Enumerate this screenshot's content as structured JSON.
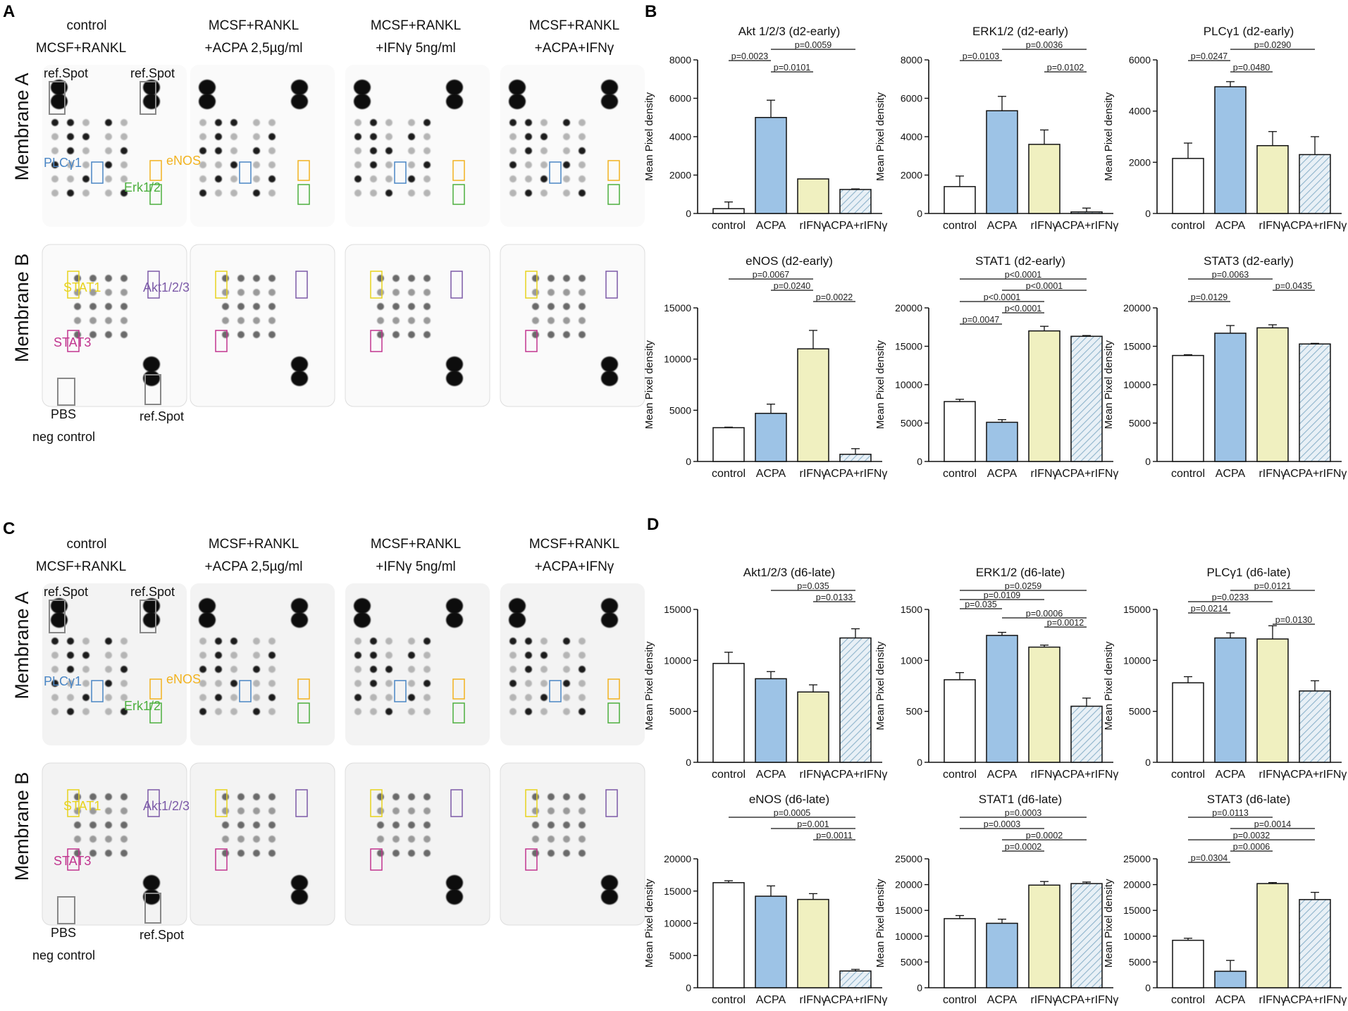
{
  "panel_letters": [
    "A",
    "B",
    "C",
    "D"
  ],
  "blot_panels": [
    {
      "letter": "A",
      "columns": [
        {
          "l1": "control",
          "l2": "MCSF+RANKL"
        },
        {
          "l1": "MCSF+RANKL",
          "l2": "+ACPA 2,5µg/ml"
        },
        {
          "l1": "MCSF+RANKL",
          "l2": "+IFNγ 5ng/ml"
        },
        {
          "l1": "MCSF+RANKL",
          "l2": "+ACPA+IFNγ"
        }
      ],
      "membranes": [
        "Membrane A",
        "Membrane B"
      ],
      "labels": {
        "ref_spot": "ref.Spot",
        "plcg1": "PLCγ1",
        "enos": "eNOS",
        "erk": "Erk1/2",
        "stat1": "STAT1",
        "stat3": "STAT3",
        "akt": "Akt1/2/3",
        "pbs": "PBS",
        "neg_control": "neg control"
      }
    },
    {
      "letter": "C",
      "columns": [
        {
          "l1": "control",
          "l2": "MCSF+RANKL"
        },
        {
          "l1": "MCSF+RANKL",
          "l2": "+ACPA 2,5µg/ml"
        },
        {
          "l1": "MCSF+RANKL",
          "l2": "+IFNγ 5ng/ml"
        },
        {
          "l1": "MCSF+RANKL",
          "l2": "+ACPA+IFNγ"
        }
      ],
      "membranes": [
        "Membrane A",
        "Membrane B"
      ],
      "labels": {
        "ref_spot": "ref.Spot",
        "plcg1": "PLCγ1",
        "enos": "eNOS",
        "erk": "Erk1/2",
        "stat1": "STAT1",
        "stat3": "STAT3",
        "akt": "Akt1/2/3",
        "pbs": "PBS",
        "neg_control": "neg control"
      }
    }
  ],
  "colors": {
    "bar_fills": [
      "#ffffff",
      "#9dc3e6",
      "#f0f0c0",
      "#dde9f2"
    ],
    "hatch": "#8fb4cc",
    "plcg1": "#4a86c5",
    "enos": "#f2b21f",
    "erk": "#4caf3e",
    "stat1": "#e8d31c",
    "stat3": "#c1358f",
    "akt": "#7c5aa8",
    "grey_box": "#888888"
  },
  "chart_data": [
    {
      "type": "bar",
      "title": "Akt 1/2/3 (d2-early)",
      "ylabel": "Mean Pixel density",
      "categories": [
        "control",
        "ACPA",
        "rIFNγ",
        "ACPA+rIFNγ"
      ],
      "values": [
        250,
        5000,
        1800,
        1250
      ],
      "errors": [
        350,
        900,
        0,
        30
      ],
      "ylim": [
        0,
        8000
      ],
      "yticks": [
        0,
        2000,
        4000,
        6000,
        8000
      ],
      "comparisons": [
        {
          "a": 1,
          "b": 3,
          "label": "p=0.0059"
        },
        {
          "a": 0,
          "b": 1,
          "label": "p=0.0023"
        },
        {
          "a": 1,
          "b": 2,
          "label": "p=0.0101"
        }
      ]
    },
    {
      "type": "bar",
      "title": "ERK1/2 (d2-early)",
      "ylabel": "Mean Pixel density",
      "categories": [
        "control",
        "ACPA",
        "rIFNγ",
        "ACPA+rIFNγ"
      ],
      "values": [
        1400,
        5350,
        3600,
        80
      ],
      "errors": [
        550,
        750,
        750,
        200
      ],
      "ylim": [
        0,
        8000
      ],
      "yticks": [
        0,
        2000,
        4000,
        6000,
        8000
      ],
      "comparisons": [
        {
          "a": 1,
          "b": 3,
          "label": "p=0.0036"
        },
        {
          "a": 0,
          "b": 1,
          "label": "p=0.0103"
        },
        {
          "a": 2,
          "b": 3,
          "label": "p=0.0102"
        }
      ]
    },
    {
      "type": "bar",
      "title": "PLCγ1 (d2-early)",
      "ylabel": "Mean Pixel density",
      "categories": [
        "control",
        "ACPA",
        "rIFNγ",
        "ACPA+rIFNγ"
      ],
      "values": [
        2150,
        4950,
        2650,
        2300
      ],
      "errors": [
        600,
        200,
        550,
        700
      ],
      "ylim": [
        0,
        6000
      ],
      "yticks": [
        0,
        2000,
        4000,
        6000
      ],
      "comparisons": [
        {
          "a": 1,
          "b": 3,
          "label": "p=0.0290"
        },
        {
          "a": 0,
          "b": 1,
          "label": "p=0.0247"
        },
        {
          "a": 1,
          "b": 2,
          "label": "p=0.0480"
        }
      ]
    },
    {
      "type": "bar",
      "title": "eNOS (d2-early)",
      "ylabel": "Mean Pixel density",
      "categories": [
        "control",
        "ACPA",
        "rIFNγ",
        "ACPA+rIFNγ"
      ],
      "values": [
        3300,
        4700,
        11000,
        700
      ],
      "errors": [
        50,
        900,
        1800,
        550
      ],
      "ylim": [
        0,
        15000
      ],
      "yticks": [
        0,
        5000,
        10000,
        15000
      ],
      "comparisons": [
        {
          "a": 0,
          "b": 2,
          "label": "p=0.0067"
        },
        {
          "a": 1,
          "b": 2,
          "label": "p=0.0240"
        },
        {
          "a": 2,
          "b": 3,
          "label": "p=0.0022"
        }
      ]
    },
    {
      "type": "bar",
      "title": "STAT1 (d2-early)",
      "ylabel": "Mean Pixel density",
      "categories": [
        "control",
        "ACPA",
        "rIFNγ",
        "ACPA+rIFNγ"
      ],
      "values": [
        7800,
        5100,
        17000,
        16300
      ],
      "errors": [
        300,
        350,
        600,
        100
      ],
      "ylim": [
        0,
        20000
      ],
      "yticks": [
        0,
        5000,
        10000,
        15000,
        20000
      ],
      "comparisons": [
        {
          "a": 0,
          "b": 3,
          "label": "p<0.0001"
        },
        {
          "a": 1,
          "b": 3,
          "label": "p<0.0001"
        },
        {
          "a": 0,
          "b": 2,
          "label": "p<0.0001"
        },
        {
          "a": 1,
          "b": 2,
          "label": "p<0.0001"
        },
        {
          "a": 0,
          "b": 1,
          "label": "p=0.0047"
        }
      ]
    },
    {
      "type": "bar",
      "title": "STAT3 (d2-early)",
      "ylabel": "Mean Pixel density",
      "categories": [
        "control",
        "ACPA",
        "rIFNγ",
        "ACPA+rIFNγ"
      ],
      "values": [
        13800,
        16700,
        17400,
        15300
      ],
      "errors": [
        100,
        1000,
        400,
        80
      ],
      "ylim": [
        0,
        20000
      ],
      "yticks": [
        0,
        5000,
        10000,
        15000,
        20000
      ],
      "comparisons": [
        {
          "a": 0,
          "b": 2,
          "label": "p=0.0063"
        },
        {
          "a": 2,
          "b": 3,
          "label": "p=0.0435"
        },
        {
          "a": 0,
          "b": 1,
          "label": "p=0.0129"
        }
      ]
    },
    {
      "type": "bar",
      "title": "Akt1/2/3 (d6-late)",
      "ylabel": "Mean Pixel density",
      "categories": [
        "control",
        "ACPA",
        "rIFNγ",
        "ACPA+rIFNγ"
      ],
      "values": [
        9700,
        8200,
        6900,
        12200
      ],
      "errors": [
        1100,
        700,
        700,
        900
      ],
      "ylim": [
        0,
        15000
      ],
      "yticks": [
        0,
        5000,
        10000,
        15000
      ],
      "comparisons": [
        {
          "a": 1,
          "b": 3,
          "label": "p=0.035"
        },
        {
          "a": 2,
          "b": 3,
          "label": "p=0.0133"
        }
      ]
    },
    {
      "type": "bar",
      "title": "ERK1/2 (d6-late)",
      "ylabel": "Mean Pixel density",
      "categories": [
        "control",
        "ACPA",
        "rIFNγ",
        "ACPA+rIFNγ"
      ],
      "values": [
        810,
        1245,
        1130,
        550
      ],
      "errors": [
        70,
        30,
        20,
        80
      ],
      "ylim": [
        0,
        1500
      ],
      "yticks": [
        0,
        500,
        1000,
        1500
      ],
      "comparisons": [
        {
          "a": 0,
          "b": 3,
          "label": "p=0.0259"
        },
        {
          "a": 0,
          "b": 2,
          "label": "p=0.0109"
        },
        {
          "a": 0,
          "b": 1,
          "label": "p=0.035"
        },
        {
          "a": 1,
          "b": 3,
          "label": "p=0.0006"
        },
        {
          "a": 2,
          "b": 3,
          "label": "p=0.0012"
        }
      ]
    },
    {
      "type": "bar",
      "title": "PLCγ1 (d6-late)",
      "ylabel": "Mean Pixel density",
      "categories": [
        "control",
        "ACPA",
        "rIFNγ",
        "ACPA+rIFNγ"
      ],
      "values": [
        7800,
        12200,
        12100,
        7000
      ],
      "errors": [
        600,
        500,
        1300,
        1000
      ],
      "ylim": [
        0,
        15000
      ],
      "yticks": [
        0,
        5000,
        10000,
        15000
      ],
      "comparisons": [
        {
          "a": 1,
          "b": 3,
          "label": "p=0.0121"
        },
        {
          "a": 0,
          "b": 2,
          "label": "p=0.0233"
        },
        {
          "a": 0,
          "b": 1,
          "label": "p=0.0214"
        },
        {
          "a": 2,
          "b": 3,
          "label": "p=0.0130"
        }
      ]
    },
    {
      "type": "bar",
      "title": "eNOS (d6-late)",
      "ylabel": "Mean Pixel density",
      "categories": [
        "control",
        "ACPA",
        "rIFNγ",
        "ACPA+rIFNγ"
      ],
      "values": [
        16300,
        14200,
        13700,
        2600
      ],
      "errors": [
        300,
        1600,
        900,
        250
      ],
      "ylim": [
        0,
        20000
      ],
      "yticks": [
        0,
        5000,
        10000,
        15000,
        20000
      ],
      "comparisons": [
        {
          "a": 0,
          "b": 3,
          "label": "p=0.0005"
        },
        {
          "a": 1,
          "b": 3,
          "label": "p=0.001"
        },
        {
          "a": 2,
          "b": 3,
          "label": "p=0.0011"
        }
      ]
    },
    {
      "type": "bar",
      "title": "STAT1 (d6-late)",
      "ylabel": "Mean Pixel density",
      "categories": [
        "control",
        "ACPA",
        "rIFNγ",
        "ACPA+rIFNγ"
      ],
      "values": [
        13400,
        12500,
        19900,
        20200
      ],
      "errors": [
        600,
        800,
        700,
        300
      ],
      "ylim": [
        0,
        25000
      ],
      "yticks": [
        0,
        5000,
        10000,
        15000,
        20000,
        25000
      ],
      "comparisons": [
        {
          "a": 0,
          "b": 3,
          "label": "p=0.0003"
        },
        {
          "a": 0,
          "b": 2,
          "label": "p=0.0003"
        },
        {
          "a": 1,
          "b": 3,
          "label": "p=0.0002"
        },
        {
          "a": 1,
          "b": 2,
          "label": "p=0.0002"
        }
      ]
    },
    {
      "type": "bar",
      "title": "STAT3 (d6-late)",
      "ylabel": "Mean Pixel density",
      "categories": [
        "control",
        "ACPA",
        "rIFNγ",
        "ACPA+rIFNγ"
      ],
      "values": [
        9200,
        3200,
        20200,
        17100
      ],
      "errors": [
        400,
        2100,
        200,
        1400
      ],
      "ylim": [
        0,
        25000
      ],
      "yticks": [
        0,
        5000,
        10000,
        15000,
        20000,
        25000
      ],
      "comparisons": [
        {
          "a": 0,
          "b": 2,
          "label": "p=0.0113"
        },
        {
          "a": 1,
          "b": 3,
          "label": "p=0.0014"
        },
        {
          "a": 0,
          "b": 3,
          "label": "p=0.0032"
        },
        {
          "a": 1,
          "b": 2,
          "label": "p=0.0006"
        },
        {
          "a": 0,
          "b": 1,
          "label": "p=0.0304"
        }
      ]
    }
  ]
}
